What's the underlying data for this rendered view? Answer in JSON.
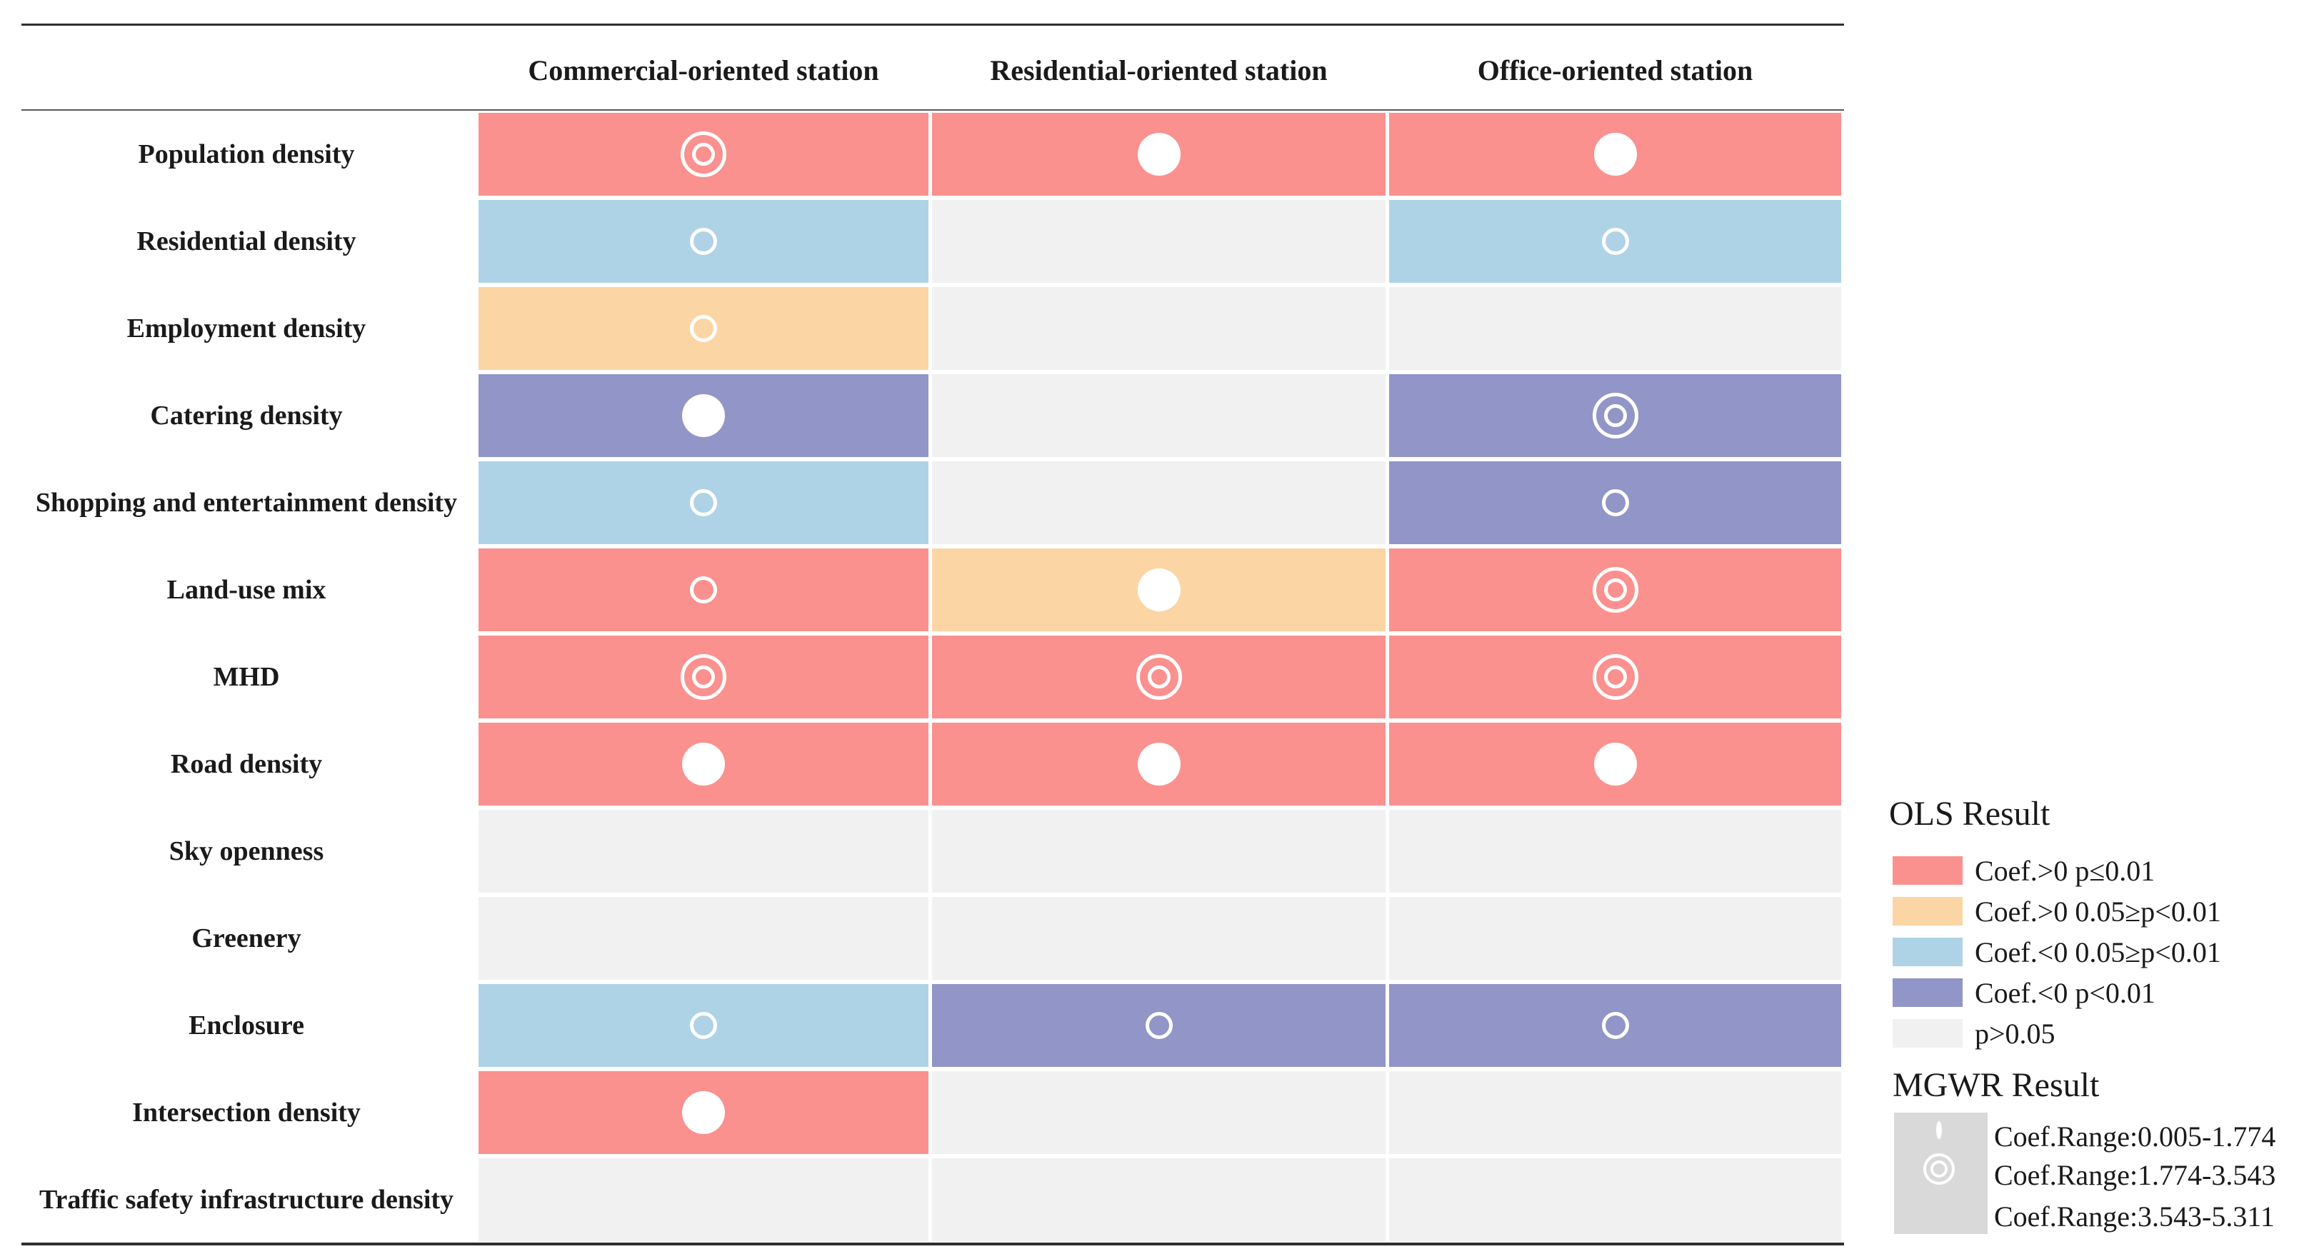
{
  "colors": {
    "pos_p01": "#FA918F",
    "pos_p05": "#FCD5A4",
    "neg_p05": "#AFD3E6",
    "neg_p01": "#9295C7",
    "ns": "#F1F1F2",
    "legend_box": "#D9D9D9",
    "marker": "#FFFFFF",
    "rule_dark": "#2F2F2F",
    "rule_mid": "#5A5A5A"
  },
  "legend_ols": {
    "title": "OLS Result",
    "items": [
      {
        "key": "pos_p01",
        "label": "Coef.>0 p≤0.01"
      },
      {
        "key": "pos_p05",
        "label": "Coef.>0 0.05≥p<0.01"
      },
      {
        "key": "neg_p05",
        "label": "Coef.<0 0.05≥p<0.01"
      },
      {
        "key": "neg_p01",
        "label": "Coef.<0 p<0.01"
      },
      {
        "key": "ns",
        "label": "p>0.05"
      }
    ]
  },
  "legend_mgwr": {
    "title": "MGWR Result",
    "items": [
      {
        "marker": "small",
        "label": "Coef.Range:0.005-1.774"
      },
      {
        "marker": "double",
        "label": "Coef.Range:1.774-3.543"
      },
      {
        "marker": "filled",
        "label": "Coef.Range:3.543-5.311"
      }
    ]
  },
  "chart_data": {
    "type": "heatmap",
    "title": "",
    "columns": [
      "Commercial-oriented station",
      "Residential-oriented station",
      "Office-oriented station"
    ],
    "legend_position": "right",
    "mgwr_marker_ranges": {
      "small": "0.005-1.774",
      "double": "1.774-3.543",
      "filled": "3.543-5.311"
    },
    "rows": [
      {
        "label": "Population density",
        "cells": [
          {
            "ols": "pos_p01",
            "mgwr": "1.774-3.543"
          },
          {
            "ols": "pos_p01",
            "mgwr": "3.543-5.311"
          },
          {
            "ols": "pos_p01",
            "mgwr": "3.543-5.311"
          }
        ]
      },
      {
        "label": "Residential density",
        "cells": [
          {
            "ols": "neg_p05",
            "mgwr": "0.005-1.774"
          },
          {
            "ols": "ns",
            "mgwr": null
          },
          {
            "ols": "neg_p05",
            "mgwr": "0.005-1.774"
          }
        ]
      },
      {
        "label": "Employment density",
        "cells": [
          {
            "ols": "pos_p05",
            "mgwr": "0.005-1.774"
          },
          {
            "ols": "ns",
            "mgwr": null
          },
          {
            "ols": "ns",
            "mgwr": null
          }
        ]
      },
      {
        "label": "Catering density",
        "cells": [
          {
            "ols": "neg_p01",
            "mgwr": "3.543-5.311"
          },
          {
            "ols": "ns",
            "mgwr": null
          },
          {
            "ols": "neg_p01",
            "mgwr": "1.774-3.543"
          }
        ]
      },
      {
        "label": "Shopping and entertainment density",
        "cells": [
          {
            "ols": "neg_p05",
            "mgwr": "0.005-1.774"
          },
          {
            "ols": "ns",
            "mgwr": null
          },
          {
            "ols": "neg_p01",
            "mgwr": "0.005-1.774"
          }
        ]
      },
      {
        "label": "Land-use mix",
        "cells": [
          {
            "ols": "pos_p01",
            "mgwr": "0.005-1.774"
          },
          {
            "ols": "pos_p05",
            "mgwr": "3.543-5.311"
          },
          {
            "ols": "pos_p01",
            "mgwr": "1.774-3.543"
          }
        ]
      },
      {
        "label": "MHD",
        "cells": [
          {
            "ols": "pos_p01",
            "mgwr": "1.774-3.543"
          },
          {
            "ols": "pos_p01",
            "mgwr": "1.774-3.543"
          },
          {
            "ols": "pos_p01",
            "mgwr": "1.774-3.543"
          }
        ]
      },
      {
        "label": "Road density",
        "cells": [
          {
            "ols": "pos_p01",
            "mgwr": "3.543-5.311"
          },
          {
            "ols": "pos_p01",
            "mgwr": "3.543-5.311"
          },
          {
            "ols": "pos_p01",
            "mgwr": "3.543-5.311"
          }
        ]
      },
      {
        "label": "Sky openness",
        "cells": [
          {
            "ols": "ns",
            "mgwr": null
          },
          {
            "ols": "ns",
            "mgwr": null
          },
          {
            "ols": "ns",
            "mgwr": null
          }
        ]
      },
      {
        "label": "Greenery",
        "cells": [
          {
            "ols": "ns",
            "mgwr": null
          },
          {
            "ols": "ns",
            "mgwr": null
          },
          {
            "ols": "ns",
            "mgwr": null
          }
        ]
      },
      {
        "label": "Enclosure",
        "cells": [
          {
            "ols": "neg_p05",
            "mgwr": "0.005-1.774"
          },
          {
            "ols": "neg_p01",
            "mgwr": "0.005-1.774"
          },
          {
            "ols": "neg_p01",
            "mgwr": "0.005-1.774"
          }
        ]
      },
      {
        "label": "Intersection density",
        "cells": [
          {
            "ols": "pos_p01",
            "mgwr": "3.543-5.311"
          },
          {
            "ols": "ns",
            "mgwr": null
          },
          {
            "ols": "ns",
            "mgwr": null
          }
        ]
      },
      {
        "label": "Traffic safety infrastructure density",
        "cells": [
          {
            "ols": "ns",
            "mgwr": null
          },
          {
            "ols": "ns",
            "mgwr": null
          },
          {
            "ols": "ns",
            "mgwr": null
          }
        ]
      }
    ]
  }
}
